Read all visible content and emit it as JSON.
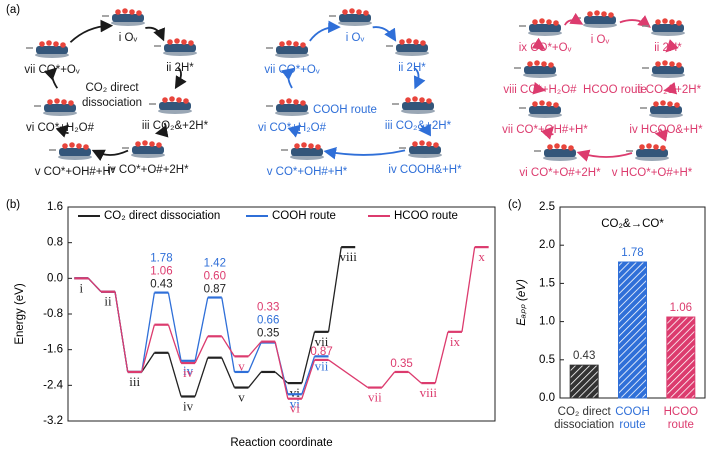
{
  "panel_a": {
    "label": "(a)",
    "cycles": [
      {
        "title": [
          "CO₂ direct",
          "dissociation"
        ],
        "color": "#1a1a1a",
        "nodes": [
          "i Oᵥ",
          "ii 2H*",
          "iii CO₂&+2H*",
          "iv CO*+O#+2H*",
          "v CO*+OH#+H*",
          "vi CO*+H₂O#",
          "vii CO*+Oᵥ"
        ]
      },
      {
        "title": [
          "COOH route"
        ],
        "color": "#2f6fd8",
        "nodes": [
          "i Oᵥ",
          "ii 2H*",
          "iii CO₂&+2H*",
          "iv COOH&+H*",
          "v CO*+OH#+H*",
          "vi CO*+H₂O#",
          "vii CO*+Oᵥ"
        ]
      },
      {
        "title": [
          "HCOO route"
        ],
        "color": "#dc3b6e",
        "nodes": [
          "i Oᵥ",
          "ii 2H*",
          "iii CO₂&+2H*",
          "iv HCOO&+H*",
          "v HCO*+O#+H*",
          "vi CO*+O#+2H*",
          "vii CO*+OH#+H*",
          "viii CO*+H₂O#",
          "ix CO*+Oᵥ"
        ]
      }
    ]
  },
  "chart_data": [
    {
      "type": "step",
      "panel": "(b)",
      "ylabel": "Energy (eV)",
      "xlabel": "Reaction coordinate",
      "xlim": [
        -0.5,
        15.5
      ],
      "ylim": [
        -3.2,
        1.6
      ],
      "yticks": [
        -3.2,
        -2.4,
        -1.6,
        -0.8,
        {
          "value": 0,
          "label": "0.0"
        },
        0.8,
        1.6
      ],
      "legend": "top",
      "series": [
        {
          "name": "CO₂ direct dissociation",
          "color": "#222222",
          "x": [
            0,
            1,
            2,
            3,
            4,
            5,
            6,
            7,
            8,
            9,
            10
          ],
          "values": [
            0,
            -0.3,
            -2.1,
            -1.67,
            -2.65,
            -1.78,
            -2.45,
            -2.1,
            -2.35,
            -1.2,
            0.7
          ],
          "labels": [
            "i",
            "ii",
            "iii",
            null,
            "iv",
            null,
            "v",
            null,
            "vi",
            "vii",
            "viii"
          ],
          "barriers": [
            null,
            null,
            null,
            "0.43",
            null,
            "0.87",
            null,
            "0.35",
            null,
            null,
            null
          ]
        },
        {
          "name": "COOH route",
          "color": "#2f6fd8",
          "x": [
            0,
            1,
            2,
            3,
            4,
            5,
            6,
            7,
            8,
            9
          ],
          "values": [
            0,
            -0.3,
            -2.1,
            -0.32,
            -1.85,
            -0.43,
            -2.1,
            -1.44,
            -2.6,
            -1.75
          ],
          "labels": [
            null,
            null,
            null,
            null,
            "iv",
            null,
            null,
            null,
            "vi",
            "vii"
          ],
          "barriers": [
            null,
            null,
            null,
            "1.78",
            null,
            "1.42",
            null,
            "0.66",
            null,
            null
          ]
        },
        {
          "name": "HCOO route",
          "color": "#dc3b6e",
          "x": [
            0,
            1,
            2,
            3,
            4,
            5,
            6,
            7,
            8,
            9,
            11,
            12,
            13,
            14,
            15
          ],
          "values": [
            0,
            -0.3,
            -2.1,
            -1.04,
            -1.9,
            -1.3,
            -1.75,
            -1.42,
            -2.7,
            -1.83,
            -2.45,
            -2.1,
            -2.35,
            -1.2,
            0.7
          ],
          "labels": [
            null,
            null,
            null,
            null,
            "iv",
            null,
            "v",
            null,
            "vi",
            null,
            "vii",
            null,
            "viii",
            "ix",
            "x"
          ],
          "barriers": [
            null,
            null,
            null,
            "1.06",
            null,
            "0.60",
            null,
            "0.33",
            null,
            "0.87",
            null,
            "0.35",
            null,
            null,
            null
          ]
        }
      ]
    },
    {
      "type": "bar",
      "panel": "(c)",
      "title": "CO₂&→CO*",
      "ylabel": "Eₐₚₚ (eV)",
      "categories": [
        [
          "CO₂ direct",
          "dissociation"
        ],
        [
          "COOH",
          "route"
        ],
        [
          "HCOO",
          "route"
        ]
      ],
      "values": [
        0.43,
        1.78,
        1.06
      ],
      "colors": [
        "#333333",
        "#2f6fd8",
        "#dc3b6e"
      ],
      "hatch": true,
      "ylim": [
        0,
        2.5
      ],
      "yticks": [
        {
          "value": 0,
          "label": "0.0"
        },
        0.5,
        {
          "value": 1,
          "label": "1.0"
        },
        1.5,
        {
          "value": 2,
          "label": "2.0"
        },
        2.5
      ]
    }
  ]
}
